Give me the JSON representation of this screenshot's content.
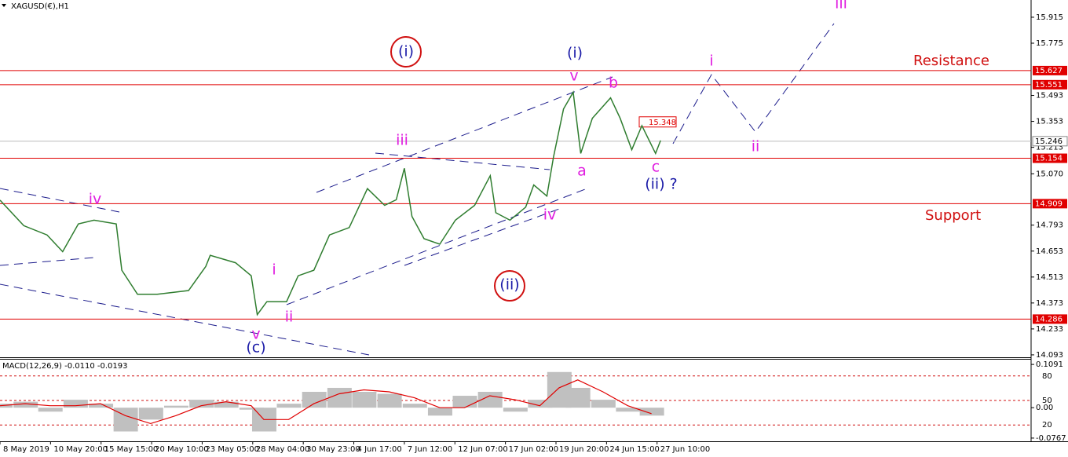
{
  "chart_data": [
    {
      "type": "line",
      "title": "XAGUSD(€),H1",
      "x": [
        0,
        0.47,
        0.93,
        1.24,
        1.55,
        1.86,
        2.3,
        2.41,
        2.72,
        3.11,
        3.73,
        4.07,
        4.16,
        4.66,
        4.97,
        5.09,
        5.28,
        5.67,
        5.9,
        6.21,
        6.52,
        6.91,
        7.27,
        7.61,
        7.84,
        8.0,
        8.15,
        8.39,
        8.7,
        9.01,
        9.39,
        9.7,
        9.81,
        10.09,
        10.4,
        10.56,
        10.82,
        10.95,
        11.15,
        11.34,
        11.49,
        11.72,
        12.08,
        12.27,
        12.5,
        12.7,
        12.97,
        13.07
      ],
      "values": [
        14.928,
        14.79,
        14.74,
        14.65,
        14.8,
        14.82,
        14.8,
        14.55,
        14.42,
        14.42,
        14.44,
        14.57,
        14.63,
        14.59,
        14.52,
        14.31,
        14.38,
        14.38,
        14.52,
        14.55,
        14.74,
        14.78,
        14.99,
        14.9,
        14.93,
        15.1,
        14.84,
        14.72,
        14.69,
        14.82,
        14.9,
        15.06,
        14.86,
        14.82,
        14.89,
        15.01,
        14.95,
        15.16,
        15.42,
        15.51,
        15.18,
        15.37,
        15.48,
        15.37,
        15.2,
        15.33,
        15.18,
        15.25
      ],
      "color": "#2f7d2f",
      "xlim": [
        0,
        20.4
      ],
      "ylim": [
        14.08,
        16.008
      ],
      "yticks": [
        15.915,
        15.775,
        15.493,
        15.353,
        15.213,
        {
          "value": 15.07,
          "label": "15.070"
        },
        14.793,
        14.653,
        14.513,
        14.373,
        14.233,
        14.093
      ],
      "levels": [
        15.627,
        15.551,
        15.154,
        14.909,
        14.286
      ],
      "level_color": "#e00000",
      "current_price": 15.246,
      "price_tag": 15.348,
      "resistance_label": "Resistance",
      "support_label": "Support",
      "annotations": [
        {
          "text": "(i)",
          "color": "#1c1ca8"
        },
        {
          "text": "(i)",
          "color": "#1c1ca8"
        },
        {
          "text": "v",
          "color": "#e01ee0"
        },
        {
          "text": "b",
          "color": "#e01ee0"
        },
        {
          "text": "iii",
          "color": "#e01ee0"
        },
        {
          "text": "iv",
          "color": "#e01ee0"
        },
        {
          "text": "a",
          "color": "#e01ee0"
        },
        {
          "text": "c",
          "color": "#e01ee0"
        },
        {
          "text": "(ii) ?",
          "color": "#1c1ca8"
        },
        {
          "text": "iv",
          "color": "#e01ee0"
        },
        {
          "text": "i",
          "color": "#e01ee0"
        },
        {
          "text": "(ii)",
          "color": "#1c1ca8"
        },
        {
          "text": "ii",
          "color": "#e01ee0"
        },
        {
          "text": "v",
          "color": "#e01ee0"
        },
        {
          "text": "(c)",
          "color": "#1c1ca8"
        },
        {
          "text": "i",
          "color": "#e01ee0"
        },
        {
          "text": "ii",
          "color": "#e01ee0"
        },
        {
          "text": "iii",
          "color": "#e01ee0"
        }
      ]
    },
    {
      "type": "macd",
      "title": "MACD(12,26,9) -0.0110 -0.0193",
      "x": [
        0,
        0.5,
        0.99,
        1.49,
        1.99,
        2.48,
        2.98,
        3.48,
        3.98,
        4.47,
        4.97,
        5.22,
        5.71,
        6.21,
        6.71,
        7.2,
        7.7,
        8.2,
        8.7,
        9.19,
        9.69,
        10.19,
        10.68,
        11.06,
        11.43,
        11.93,
        12.42,
        12.89
      ],
      "values": [
        0.01,
        0.015,
        -0.01,
        0.02,
        0.01,
        -0.06,
        -0.03,
        0.005,
        0.02,
        0.015,
        -0.005,
        -0.06,
        0.01,
        0.04,
        0.05,
        0.04,
        0.035,
        0.01,
        -0.02,
        0.03,
        0.04,
        -0.01,
        0.02,
        0.09,
        0.05,
        0.02,
        -0.01,
        -0.02
      ],
      "signal": [
        0.005,
        0.01,
        0.005,
        0.005,
        0.01,
        -0.02,
        -0.04,
        -0.02,
        0.005,
        0.015,
        0.005,
        -0.03,
        -0.03,
        0.01,
        0.035,
        0.045,
        0.04,
        0.025,
        0.0,
        0.0,
        0.03,
        0.02,
        0.005,
        0.05,
        0.07,
        0.04,
        0.005,
        -0.015
      ],
      "color": "#c0c0c0",
      "signal_color": "#e00000",
      "xlim": [
        0,
        20.4
      ],
      "xticks": [
        {
          "value": 0,
          "label": "8 May 2019"
        },
        {
          "value": 1,
          "label": "10 May 20:00"
        },
        {
          "value": 2,
          "label": "15 May 15:00"
        },
        {
          "value": 3,
          "label": "20 May 10:00"
        },
        {
          "value": 4,
          "label": "23 May 05:00"
        },
        {
          "value": 5,
          "label": "28 May 04:00"
        },
        {
          "value": 6,
          "label": "30 May 23:00"
        },
        {
          "value": 7,
          "label": "4 Jun 17:00"
        },
        {
          "value": 8,
          "label": "7 Jun 12:00"
        },
        {
          "value": 9,
          "label": "12 Jun 07:00"
        },
        {
          "value": 10,
          "label": "17 Jun 02:00"
        },
        {
          "value": 11,
          "label": "19 Jun 20:00"
        },
        {
          "value": 12,
          "label": "24 Jun 15:00"
        },
        {
          "value": 13,
          "label": "27 Jun 10:00"
        }
      ],
      "ylim": [
        -0.0848,
        0.1212
      ],
      "yticks": [
        0.1091,
        {
          "value": 0,
          "label": "0.00"
        },
        -0.0767
      ],
      "y2lim": [
        0,
        100
      ],
      "y2ticks": [
        20,
        50,
        80
      ]
    }
  ]
}
